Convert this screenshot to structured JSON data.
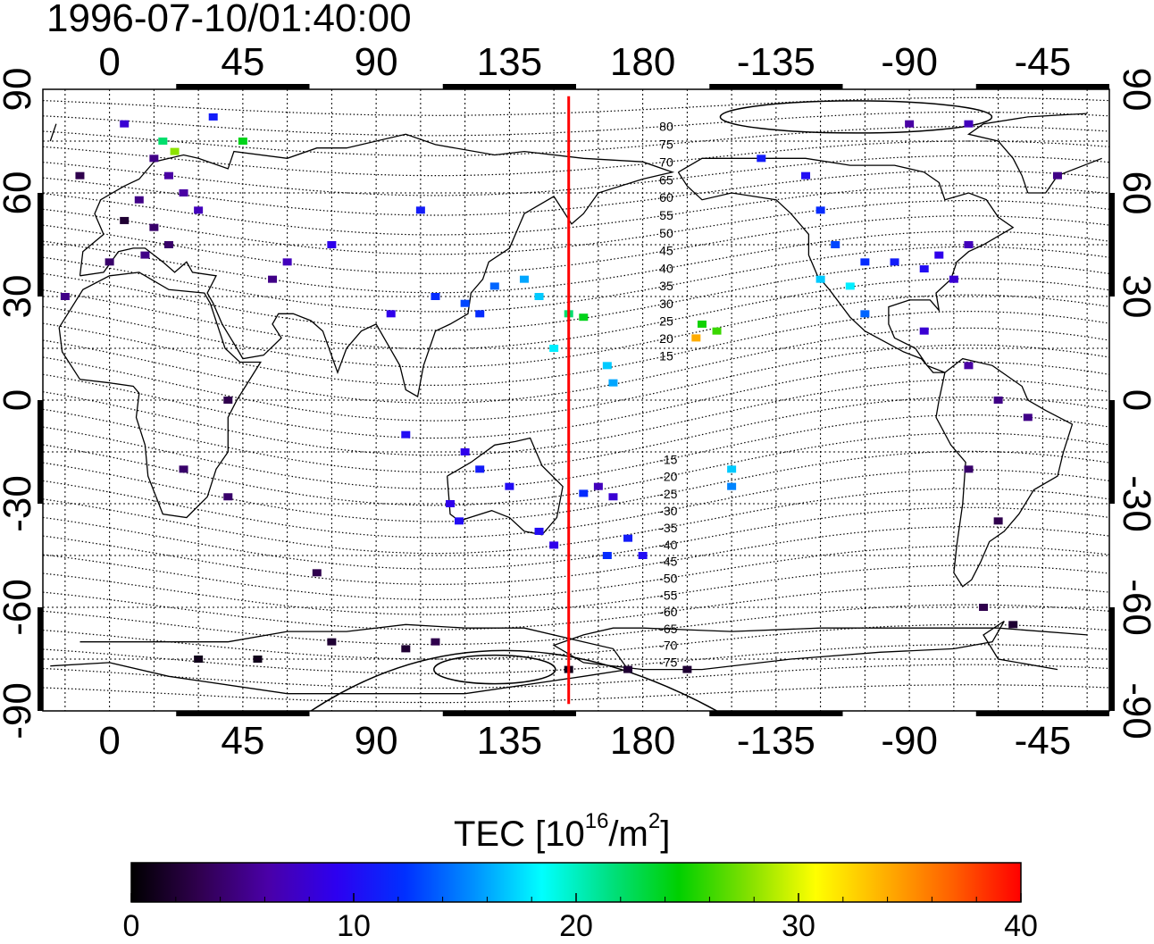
{
  "title": "1996-07-10/01:40:00",
  "map": {
    "projection": "equirectangular",
    "lon_center": 157.5,
    "lon_range": [
      -22.5,
      337.5
    ],
    "lat_range": [
      -90,
      90
    ],
    "x_tick_labels": [
      "0",
      "45",
      "90",
      "135",
      "180",
      "-135",
      "-90",
      "-45"
    ],
    "x_tick_lons": [
      0,
      45,
      90,
      135,
      180,
      225,
      270,
      315
    ],
    "y_tick_labels": [
      "90",
      "60",
      "30",
      "0",
      "-30",
      "-60",
      "-90"
    ],
    "y_tick_lats": [
      90,
      60,
      30,
      0,
      -30,
      -60,
      -90
    ],
    "terminator_lon": 155,
    "terminator_color": "#ff0000",
    "contour_labels": [
      "80",
      "75",
      "70",
      "65",
      "60",
      "55",
      "50",
      "45",
      "40",
      "35",
      "30",
      "25",
      "20",
      "15",
      "-15",
      "-20",
      "-25",
      "-30",
      "-35",
      "-40",
      "-45",
      "-50",
      "-55",
      "-60",
      "-65",
      "-70",
      "-75"
    ],
    "grid": "dotted"
  },
  "colorbar": {
    "title_prefix": "TEC  [10",
    "title_exp1": "16",
    "title_mid": "/m",
    "title_exp2": "2",
    "title_suffix": "]",
    "min": 0,
    "max": 40,
    "tick_labels": [
      "0",
      "10",
      "20",
      "30",
      "40"
    ],
    "colors": [
      "#000000",
      "#30004f",
      "#4a00a8",
      "#2d00f0",
      "#0030ff",
      "#0090ff",
      "#00ffff",
      "#00e080",
      "#00d000",
      "#80e000",
      "#ffff00",
      "#ffb000",
      "#ff6000",
      "#ff0000"
    ]
  },
  "chart_data": {
    "type": "scatter",
    "title": "1996-07-10/01:40:00",
    "colorbar_label": "TEC [10^16/m^2]",
    "xlim": [
      -22.5,
      337.5
    ],
    "ylim": [
      -90,
      90
    ],
    "points": [
      {
        "lon": 5,
        "lat": 80,
        "tec": 8
      },
      {
        "lon": 15,
        "lat": 70,
        "tec": 5
      },
      {
        "lon": 20,
        "lat": 65,
        "tec": 6
      },
      {
        "lon": 10,
        "lat": 58,
        "tec": 5
      },
      {
        "lon": 5,
        "lat": 52,
        "tec": 2
      },
      {
        "lon": 15,
        "lat": 50,
        "tec": 4
      },
      {
        "lon": 20,
        "lat": 45,
        "tec": 4
      },
      {
        "lon": 12,
        "lat": 42,
        "tec": 5
      },
      {
        "lon": 0,
        "lat": 40,
        "tec": 4
      },
      {
        "lon": 25,
        "lat": 60,
        "tec": 6
      },
      {
        "lon": 30,
        "lat": 55,
        "tec": 7
      },
      {
        "lon": 18,
        "lat": 75,
        "tec": 22
      },
      {
        "lon": 22,
        "lat": 72,
        "tec": 28
      },
      {
        "lon": 45,
        "lat": 75,
        "tec": 24
      },
      {
        "lon": 35,
        "lat": 82,
        "tec": 11
      },
      {
        "lon": 75,
        "lat": 45,
        "tec": 9
      },
      {
        "lon": 60,
        "lat": 40,
        "tec": 7
      },
      {
        "lon": 55,
        "lat": 35,
        "tec": 5
      },
      {
        "lon": 105,
        "lat": 55,
        "tec": 11
      },
      {
        "lon": 110,
        "lat": 30,
        "tec": 12
      },
      {
        "lon": 120,
        "lat": 28,
        "tec": 13
      },
      {
        "lon": 130,
        "lat": 33,
        "tec": 14
      },
      {
        "lon": 140,
        "lat": 35,
        "tec": 16
      },
      {
        "lon": 145,
        "lat": 30,
        "tec": 17
      },
      {
        "lon": 125,
        "lat": 25,
        "tec": 12
      },
      {
        "lon": 150,
        "lat": 15,
        "tec": 18
      },
      {
        "lon": 155,
        "lat": 25,
        "tec": 22
      },
      {
        "lon": 160,
        "lat": 24,
        "tec": 24
      },
      {
        "lon": 168,
        "lat": 10,
        "tec": 17
      },
      {
        "lon": 170,
        "lat": 5,
        "tec": 16
      },
      {
        "lon": 200,
        "lat": 22,
        "tec": 25
      },
      {
        "lon": 205,
        "lat": 20,
        "tec": 26
      },
      {
        "lon": 198,
        "lat": 18,
        "tec": 34
      },
      {
        "lon": 210,
        "lat": -20,
        "tec": 17
      },
      {
        "lon": 210,
        "lat": -25,
        "tec": 15
      },
      {
        "lon": 95,
        "lat": 25,
        "tec": 9
      },
      {
        "lon": 100,
        "lat": -10,
        "tec": 10
      },
      {
        "lon": 120,
        "lat": -15,
        "tec": 9
      },
      {
        "lon": 125,
        "lat": -20,
        "tec": 11
      },
      {
        "lon": 135,
        "lat": -25,
        "tec": 10
      },
      {
        "lon": 115,
        "lat": -30,
        "tec": 9
      },
      {
        "lon": 118,
        "lat": -35,
        "tec": 10
      },
      {
        "lon": 145,
        "lat": -38,
        "tec": 10
      },
      {
        "lon": 150,
        "lat": -42,
        "tec": 9
      },
      {
        "lon": 165,
        "lat": -25,
        "tec": 7
      },
      {
        "lon": 170,
        "lat": -28,
        "tec": 8
      },
      {
        "lon": 175,
        "lat": -40,
        "tec": 11
      },
      {
        "lon": 168,
        "lat": -45,
        "tec": 12
      },
      {
        "lon": 180,
        "lat": -45,
        "tec": 10
      },
      {
        "lon": 160,
        "lat": -27,
        "tec": 12
      },
      {
        "lon": 220,
        "lat": 70,
        "tec": 11
      },
      {
        "lon": 235,
        "lat": 65,
        "tec": 10
      },
      {
        "lon": 240,
        "lat": 55,
        "tec": 12
      },
      {
        "lon": 245,
        "lat": 45,
        "tec": 13
      },
      {
        "lon": 240,
        "lat": 35,
        "tec": 17
      },
      {
        "lon": 250,
        "lat": 33,
        "tec": 18
      },
      {
        "lon": 255,
        "lat": 40,
        "tec": 12
      },
      {
        "lon": 265,
        "lat": 40,
        "tec": 11
      },
      {
        "lon": 275,
        "lat": 38,
        "tec": 10
      },
      {
        "lon": 280,
        "lat": 42,
        "tec": 9
      },
      {
        "lon": 285,
        "lat": 35,
        "tec": 8
      },
      {
        "lon": 290,
        "lat": 45,
        "tec": 7
      },
      {
        "lon": 255,
        "lat": 25,
        "tec": 14
      },
      {
        "lon": 275,
        "lat": 20,
        "tec": 8
      },
      {
        "lon": 290,
        "lat": 10,
        "tec": 6
      },
      {
        "lon": 300,
        "lat": 0,
        "tec": 5
      },
      {
        "lon": 310,
        "lat": -5,
        "tec": 5
      },
      {
        "lon": 290,
        "lat": -20,
        "tec": 4
      },
      {
        "lon": 300,
        "lat": -35,
        "tec": 3
      },
      {
        "lon": 295,
        "lat": -60,
        "tec": 3
      },
      {
        "lon": 305,
        "lat": -65,
        "tec": 2
      },
      {
        "lon": 270,
        "lat": 80,
        "tec": 6
      },
      {
        "lon": 290,
        "lat": 80,
        "tec": 7
      },
      {
        "lon": 320,
        "lat": 65,
        "tec": 5
      },
      {
        "lon": 40,
        "lat": -28,
        "tec": 4
      },
      {
        "lon": 40,
        "lat": 0,
        "tec": 3
      },
      {
        "lon": 25,
        "lat": -20,
        "tec": 4
      },
      {
        "lon": 70,
        "lat": -50,
        "tec": 3
      },
      {
        "lon": 75,
        "lat": -70,
        "tec": 2
      },
      {
        "lon": 50,
        "lat": -75,
        "tec": 1
      },
      {
        "lon": 30,
        "lat": -75,
        "tec": 1
      },
      {
        "lon": 100,
        "lat": -72,
        "tec": 2
      },
      {
        "lon": 110,
        "lat": -70,
        "tec": 3
      },
      {
        "lon": 155,
        "lat": -78,
        "tec": 1
      },
      {
        "lon": 175,
        "lat": -78,
        "tec": 2
      },
      {
        "lon": 195,
        "lat": -78,
        "tec": 2
      },
      {
        "lon": -15,
        "lat": 30,
        "tec": 5
      },
      {
        "lon": -10,
        "lat": 65,
        "tec": 3
      }
    ]
  }
}
